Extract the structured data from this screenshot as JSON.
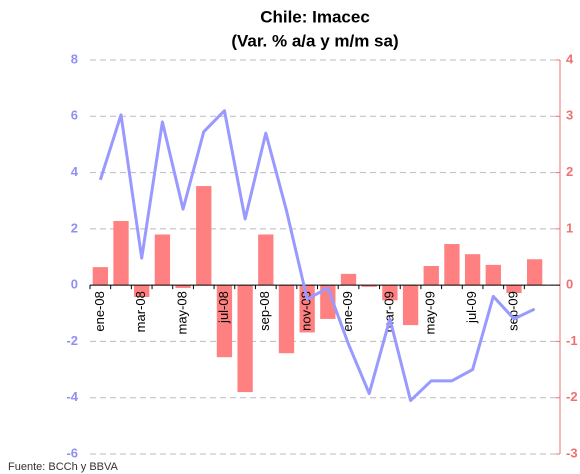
{
  "chart_data": {
    "type": "bar_line",
    "title": "Chile: Imacec",
    "subtitle": "(Var. % a/a y m/m sa)",
    "source": "Fuente: BCCh y BBVA",
    "categories": [
      "ene-08",
      null,
      "mar-08",
      null,
      "may-08",
      null,
      "jul-08",
      null,
      "sep-08",
      null,
      "nov-08",
      null,
      "ene-09",
      null,
      "mar-09",
      null,
      "may-09",
      null,
      "jul-09",
      null,
      "sep-09",
      null
    ],
    "series": [
      {
        "type": "line",
        "color": "#9999ff",
        "values": [
          3.74,
          6.05,
          0.96,
          5.8,
          2.7,
          5.45,
          6.2,
          2.35,
          5.4,
          2.65,
          -0.5,
          -0.1,
          -2.1,
          -3.85,
          -1.2,
          -4.1,
          -3.4,
          -3.4,
          -3.0,
          -0.4,
          -1.2,
          -0.85
        ]
      },
      {
        "type": "bar",
        "axis": "y2",
        "color": "#ff8080",
        "values": [
          0.32,
          1.14,
          -0.21,
          0.9,
          -0.05,
          1.76,
          -1.28,
          -1.9,
          0.9,
          -1.21,
          -0.84,
          -0.6,
          0.2,
          -0.03,
          -0.27,
          -0.71,
          0.34,
          0.73,
          0.55,
          0.36,
          -0.14,
          0.46
        ]
      }
    ],
    "ylim": [
      -6,
      8
    ],
    "yticks": [
      -6,
      -4,
      -2,
      0,
      2,
      4,
      6,
      8
    ],
    "y2lim": [
      -3,
      4
    ],
    "y2ticks": [
      -3,
      -2,
      -1,
      0,
      1,
      2,
      3,
      4
    ],
    "grid": true
  }
}
